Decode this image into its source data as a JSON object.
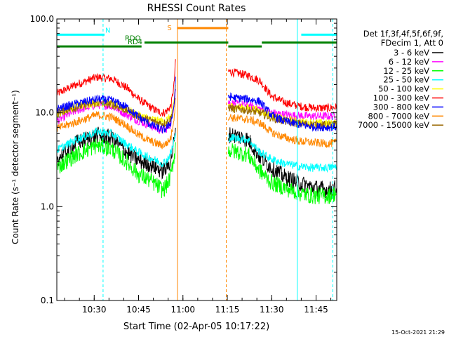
{
  "chart_data": {
    "type": "line",
    "title": "RHESSI Count Rates",
    "xlabel": "Start Time (02-Apr-05 10:17:22)",
    "ylabel": "Count Rate (s⁻¹ detector segment⁻¹)",
    "xlim": [
      "10:17:22",
      "11:52:00"
    ],
    "ylim": [
      0.1,
      100.0
    ],
    "yscale": "log",
    "x_ticks": [
      "10:30",
      "10:45",
      "11:00",
      "11:15",
      "11:30",
      "11:45"
    ],
    "y_ticks": [
      "0.1",
      "1.0",
      "10.0",
      "100.0"
    ],
    "grid": false,
    "legend_placement": "right",
    "legend_header": [
      "Det 1f,3f,4f,5f,6f,9f,",
      "FDecim 1, Att 0"
    ],
    "data_gaps": [
      [
        "10:57:30",
        "11:15:20"
      ]
    ],
    "x_samples": [
      "10:17:22",
      "10:24",
      "10:31",
      "10:36",
      "10:41",
      "10:45",
      "10:49",
      "10:51",
      "10:52",
      "10:53",
      "10:54",
      "10:55",
      "10:56",
      "10:57",
      "10:57:30",
      "11:17",
      "11:22",
      "11:26",
      "11:30",
      "11:34",
      "11:39",
      "11:44",
      "11:49",
      "11:52"
    ],
    "series": [
      {
        "name": "3 - 6 keV",
        "color": "#000000",
        "values": [
          3.2,
          4.8,
          5.8,
          5.4,
          3.8,
          3.1,
          2.8,
          2.6,
          2.5,
          2.4,
          2.5,
          2.8,
          3.2,
          5,
          6,
          5.8,
          5.2,
          3.4,
          2.6,
          2.1,
          1.8,
          1.6,
          1.5,
          1.6
        ]
      },
      {
        "name": "6 - 12 keV",
        "color": "#ff00ff",
        "values": [
          8.2,
          10.6,
          12.2,
          11.8,
          9.5,
          8.2,
          7.3,
          6.8,
          6.6,
          6.5,
          6.6,
          7.0,
          7.8,
          13,
          18,
          12.5,
          12.0,
          11.0,
          10.0,
          9.6,
          9.3,
          9.2,
          9.2,
          9.3
        ]
      },
      {
        "name": "12 - 25 keV",
        "color": "#00ff00",
        "values": [
          2.6,
          3.6,
          4.5,
          4.1,
          3.0,
          2.2,
          1.9,
          1.7,
          1.6,
          1.5,
          1.6,
          1.8,
          2.2,
          3.4,
          4.5,
          3.9,
          3.6,
          2.4,
          1.8,
          1.6,
          1.4,
          1.3,
          1.3,
          1.4
        ]
      },
      {
        "name": "25 - 50 keV",
        "color": "#00ffff",
        "values": [
          4.0,
          5.2,
          6.3,
          6.0,
          4.6,
          3.8,
          3.3,
          3.1,
          3.0,
          2.9,
          3.0,
          3.3,
          3.8,
          5.0,
          5.8,
          5.4,
          5.2,
          3.8,
          3.2,
          2.9,
          2.7,
          2.6,
          2.6,
          2.7
        ]
      },
      {
        "name": "50 - 100 keV",
        "color": "#ffff00",
        "values": [
          9.8,
          11.8,
          13.0,
          12.5,
          10.8,
          9.4,
          8.6,
          8.3,
          8.2,
          8.1,
          8.2,
          8.6,
          9.2,
          13,
          20,
          11.5,
          11.2,
          10.5,
          9.3,
          8.5,
          8.0,
          7.8,
          7.7,
          7.8
        ]
      },
      {
        "name": "100 - 300 keV",
        "color": "#ff0000",
        "values": [
          16.0,
          20.0,
          24.0,
          23.0,
          18.5,
          14.0,
          11.5,
          10.5,
          10.2,
          10.0,
          10.2,
          10.8,
          12.0,
          20,
          36,
          27.0,
          25.0,
          22.0,
          15.0,
          13.0,
          11.8,
          11.3,
          11.2,
          11.5
        ]
      },
      {
        "name": "300 - 800 keV",
        "color": "#0000ff",
        "values": [
          11.0,
          12.5,
          14.0,
          13.5,
          11.5,
          9.0,
          7.5,
          7.0,
          6.8,
          6.6,
          6.7,
          7.2,
          8.0,
          12,
          22,
          14.5,
          14.0,
          13.2,
          9.4,
          8.2,
          7.5,
          7.1,
          7.0,
          7.1
        ]
      },
      {
        "name": "800 - 7000 keV",
        "color": "#ff8800",
        "values": [
          6.8,
          8.0,
          9.5,
          9.0,
          7.3,
          5.8,
          5.0,
          4.7,
          4.6,
          4.5,
          4.6,
          4.9,
          5.5,
          9,
          14,
          8.8,
          8.5,
          7.8,
          6.2,
          5.5,
          5.0,
          4.8,
          4.7,
          4.8
        ]
      },
      {
        "name": "7000 - 15000 keV",
        "color": "#996600",
        "values": [
          10.0,
          11.5,
          12.8,
          12.3,
          10.6,
          9.1,
          8.3,
          7.9,
          7.8,
          7.7,
          7.8,
          8.2,
          8.8,
          12,
          18,
          11.0,
          10.7,
          10.0,
          8.9,
          8.2,
          7.7,
          7.5,
          7.4,
          7.5
        ]
      }
    ],
    "attenuator_bars": [
      {
        "label": "N",
        "color": "#00ffff",
        "level": 68,
        "segments": [
          [
            "10:17:22",
            "10:33:30"
          ],
          [
            "11:40:00",
            "11:52:00"
          ]
        ]
      },
      {
        "label": "S",
        "color": "#ff8800",
        "level": 80,
        "segments": [
          [
            "10:58:00",
            "11:15:20"
          ]
        ]
      },
      {
        "label": "RDO",
        "color": "#008000",
        "level": 56,
        "segments": [
          [
            "10:47:00",
            "11:15:20"
          ],
          [
            "11:26:40",
            "11:52:00"
          ]
        ]
      },
      {
        "label": "RD4",
        "color": "#008000",
        "level": 51,
        "segments": [
          [
            "10:17:22",
            "10:46:00"
          ],
          [
            "11:15:20",
            "11:26:40"
          ]
        ]
      }
    ],
    "vertical_markers": [
      {
        "time": "10:17:22",
        "color": "#00ffff",
        "style": "solid"
      },
      {
        "time": "10:33:00",
        "color": "#00ffff",
        "style": "dashed"
      },
      {
        "time": "10:58:10",
        "color": "#ff8800",
        "style": "solid"
      },
      {
        "time": "11:14:40",
        "color": "#ff8800",
        "style": "dashed"
      },
      {
        "time": "11:38:40",
        "color": "#00ffff",
        "style": "solid"
      },
      {
        "time": "11:50:40",
        "color": "#00ffff",
        "style": "dashed"
      }
    ],
    "footer_timestamp": "15-Oct-2021 21:29"
  }
}
